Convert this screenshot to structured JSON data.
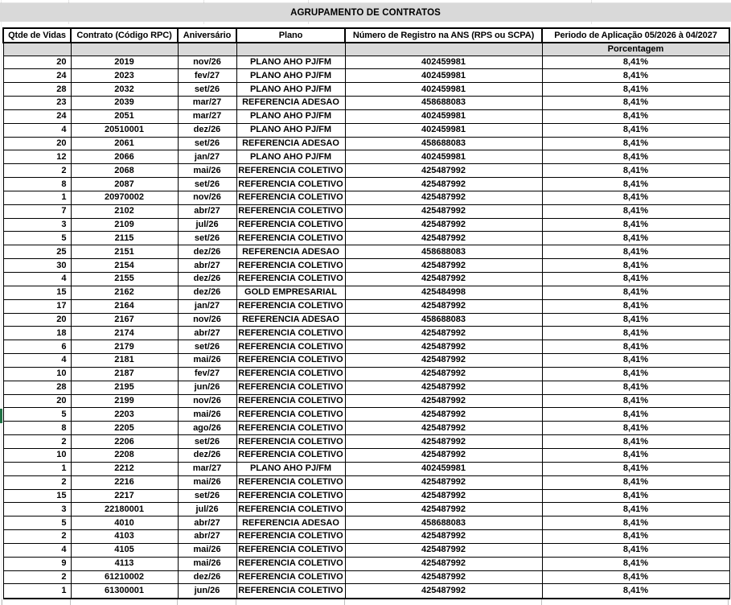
{
  "table": {
    "title": "AGRUPAMENTO DE CONTRATOS",
    "columns": [
      "Qtde de Vidas",
      "Contrato (Código RPC)",
      "Aniversário",
      "Plano",
      "Número de Registro na ANS (RPS ou SCPA)",
      "Periodo de Aplicação 05/2026 à 04/2027"
    ],
    "column_keys": [
      "qtde-vidas",
      "contrato",
      "aniversario",
      "plano",
      "registro-ans",
      "porcentagem"
    ],
    "subheader_label": "Porcentagem",
    "rows": [
      [
        "20",
        "2019",
        "nov/26",
        "PLANO AHO PJ/FM",
        "402459981",
        "8,41%"
      ],
      [
        "24",
        "2023",
        "fev/27",
        "PLANO AHO PJ/FM",
        "402459981",
        "8,41%"
      ],
      [
        "28",
        "2032",
        "set/26",
        "PLANO AHO PJ/FM",
        "402459981",
        "8,41%"
      ],
      [
        "23",
        "2039",
        "mar/27",
        "REFERENCIA ADESAO",
        "458688083",
        "8,41%"
      ],
      [
        "24",
        "2051",
        "mar/27",
        "PLANO AHO PJ/FM",
        "402459981",
        "8,41%"
      ],
      [
        "4",
        "20510001",
        "dez/26",
        "PLANO AHO PJ/FM",
        "402459981",
        "8,41%"
      ],
      [
        "20",
        "2061",
        "set/26",
        "REFERENCIA ADESAO",
        "458688083",
        "8,41%"
      ],
      [
        "12",
        "2066",
        "jan/27",
        "PLANO AHO PJ/FM",
        "402459981",
        "8,41%"
      ],
      [
        "2",
        "2068",
        "mai/26",
        "REFERENCIA COLETIVO",
        "425487992",
        "8,41%"
      ],
      [
        "8",
        "2087",
        "set/26",
        "REFERENCIA COLETIVO",
        "425487992",
        "8,41%"
      ],
      [
        "1",
        "20970002",
        "nov/26",
        "REFERENCIA COLETIVO",
        "425487992",
        "8,41%"
      ],
      [
        "7",
        "2102",
        "abr/27",
        "REFERENCIA COLETIVO",
        "425487992",
        "8,41%"
      ],
      [
        "3",
        "2109",
        "jul/26",
        "REFERENCIA COLETIVO",
        "425487992",
        "8,41%"
      ],
      [
        "5",
        "2115",
        "set/26",
        "REFERENCIA COLETIVO",
        "425487992",
        "8,41%"
      ],
      [
        "25",
        "2151",
        "dez/26",
        "REFERENCIA ADESAO",
        "458688083",
        "8,41%"
      ],
      [
        "30",
        "2154",
        "abr/27",
        "REFERENCIA COLETIVO",
        "425487992",
        "8,41%"
      ],
      [
        "4",
        "2155",
        "dez/26",
        "REFERENCIA COLETIVO",
        "425487992",
        "8,41%"
      ],
      [
        "15",
        "2162",
        "dez/26",
        "GOLD EMPRESARIAL",
        "425484998",
        "8,41%"
      ],
      [
        "17",
        "2164",
        "jan/27",
        "REFERENCIA COLETIVO",
        "425487992",
        "8,41%"
      ],
      [
        "20",
        "2167",
        "nov/26",
        "REFERENCIA ADESAO",
        "458688083",
        "8,41%"
      ],
      [
        "18",
        "2174",
        "abr/27",
        "REFERENCIA COLETIVO",
        "425487992",
        "8,41%"
      ],
      [
        "6",
        "2179",
        "set/26",
        "REFERENCIA COLETIVO",
        "425487992",
        "8,41%"
      ],
      [
        "4",
        "2181",
        "mai/26",
        "REFERENCIA COLETIVO",
        "425487992",
        "8,41%"
      ],
      [
        "10",
        "2187",
        "fev/27",
        "REFERENCIA COLETIVO",
        "425487992",
        "8,41%"
      ],
      [
        "28",
        "2195",
        "jun/26",
        "REFERENCIA COLETIVO",
        "425487992",
        "8,41%"
      ],
      [
        "20",
        "2199",
        "nov/26",
        "REFERENCIA COLETIVO",
        "425487992",
        "8,41%"
      ],
      [
        "5",
        "2203",
        "mai/26",
        "REFERENCIA COLETIVO",
        "425487992",
        "8,41%"
      ],
      [
        "8",
        "2205",
        "ago/26",
        "REFERENCIA COLETIVO",
        "425487992",
        "8,41%"
      ],
      [
        "2",
        "2206",
        "set/26",
        "REFERENCIA COLETIVO",
        "425487992",
        "8,41%"
      ],
      [
        "10",
        "2208",
        "dez/26",
        "REFERENCIA COLETIVO",
        "425487992",
        "8,41%"
      ],
      [
        "1",
        "2212",
        "mar/27",
        "PLANO AHO PJ/FM",
        "402459981",
        "8,41%"
      ],
      [
        "2",
        "2216",
        "mai/26",
        "REFERENCIA COLETIVO",
        "425487992",
        "8,41%"
      ],
      [
        "15",
        "2217",
        "set/26",
        "REFERENCIA COLETIVO",
        "425487992",
        "8,41%"
      ],
      [
        "3",
        "22180001",
        "jul/26",
        "REFERENCIA COLETIVO",
        "425487992",
        "8,41%"
      ],
      [
        "5",
        "4010",
        "abr/27",
        "REFERENCIA ADESAO",
        "458688083",
        "8,41%"
      ],
      [
        "2",
        "4103",
        "abr/27",
        "REFERENCIA COLETIVO",
        "425487992",
        "8,41%"
      ],
      [
        "4",
        "4105",
        "mai/26",
        "REFERENCIA COLETIVO",
        "425487992",
        "8,41%"
      ],
      [
        "9",
        "4113",
        "mai/26",
        "REFERENCIA COLETIVO",
        "425487992",
        "8,41%"
      ],
      [
        "2",
        "61210002",
        "dez/26",
        "REFERENCIA COLETIVO",
        "425487992",
        "8,41%"
      ],
      [
        "1",
        "61300001",
        "jun/26",
        "REFERENCIA COLETIVO",
        "425487992",
        "8,41%"
      ]
    ]
  },
  "colors": {
    "header_fill": "#D9D9D9",
    "grid_border": "#000000",
    "selection_green": "#217346"
  }
}
